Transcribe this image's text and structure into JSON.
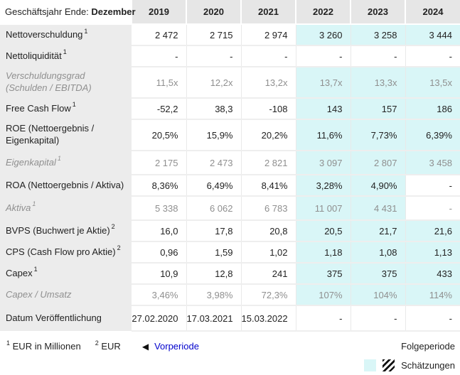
{
  "header": {
    "label_prefix": "Geschäftsjahr Ende:",
    "label_bold": "Dezember",
    "years": [
      "2019",
      "2020",
      "2021",
      "2022",
      "2023",
      "2024"
    ]
  },
  "rows": [
    {
      "label": "Nettoverschuldung",
      "sup": "1",
      "muted": false,
      "values": [
        "2 472",
        "2 715",
        "2 974",
        "3 260",
        "3 258",
        "3 444"
      ],
      "estimates": [
        false,
        false,
        false,
        true,
        true,
        true
      ]
    },
    {
      "label": "Nettoliquidität",
      "sup": "1",
      "muted": false,
      "values": [
        "-",
        "-",
        "-",
        "-",
        "-",
        "-"
      ],
      "estimates": [
        false,
        false,
        false,
        false,
        false,
        false
      ]
    },
    {
      "label": "Verschuldungsgrad (Schulden / EBITDA)",
      "sup": "",
      "muted": true,
      "values": [
        "11,5x",
        "12,2x",
        "13,2x",
        "13,7x",
        "13,3x",
        "13,5x"
      ],
      "estimates": [
        false,
        false,
        false,
        true,
        true,
        true
      ]
    },
    {
      "label": "Free Cash Flow",
      "sup": "1",
      "muted": false,
      "values": [
        "-52,2",
        "38,3",
        "-108",
        "143",
        "157",
        "186"
      ],
      "estimates": [
        false,
        false,
        false,
        true,
        true,
        true
      ]
    },
    {
      "label": "ROE (Nettoergebnis / Eigenkapital)",
      "sup": "",
      "muted": false,
      "values": [
        "20,5%",
        "15,9%",
        "20,2%",
        "11,6%",
        "7,73%",
        "6,39%"
      ],
      "estimates": [
        false,
        false,
        false,
        true,
        true,
        true
      ]
    },
    {
      "label": "Eigenkapital",
      "sup": "1",
      "muted": true,
      "values": [
        "2 175",
        "2 473",
        "2 821",
        "3 097",
        "2 807",
        "3 458"
      ],
      "estimates": [
        false,
        false,
        false,
        true,
        true,
        true
      ]
    },
    {
      "label": "ROA (Nettoergebnis / Aktiva)",
      "sup": "",
      "muted": false,
      "values": [
        "8,36%",
        "6,49%",
        "8,41%",
        "3,28%",
        "4,90%",
        "-"
      ],
      "estimates": [
        false,
        false,
        false,
        true,
        true,
        false
      ]
    },
    {
      "label": "Aktiva",
      "sup": "1",
      "muted": true,
      "values": [
        "5 338",
        "6 062",
        "6 783",
        "11 007",
        "4 431",
        "-"
      ],
      "estimates": [
        false,
        false,
        false,
        true,
        true,
        false
      ]
    },
    {
      "label": "BVPS (Buchwert je Aktie)",
      "sup": "2",
      "muted": false,
      "values": [
        "16,0",
        "17,8",
        "20,8",
        "20,5",
        "21,7",
        "21,6"
      ],
      "estimates": [
        false,
        false,
        false,
        true,
        true,
        true
      ]
    },
    {
      "label": "CPS (Cash Flow pro Aktie)",
      "sup": "2",
      "muted": false,
      "values": [
        "0,96",
        "1,59",
        "1,02",
        "1,18",
        "1,08",
        "1,13"
      ],
      "estimates": [
        false,
        false,
        false,
        true,
        true,
        true
      ]
    },
    {
      "label": "Capex",
      "sup": "1",
      "muted": false,
      "values": [
        "10,9",
        "12,8",
        "241",
        "375",
        "375",
        "433"
      ],
      "estimates": [
        false,
        false,
        false,
        true,
        true,
        true
      ]
    },
    {
      "label": "Capex / Umsatz",
      "sup": "",
      "muted": true,
      "values": [
        "3,46%",
        "3,98%",
        "72,3%",
        "107%",
        "104%",
        "114%"
      ],
      "estimates": [
        false,
        false,
        false,
        true,
        true,
        true
      ]
    },
    {
      "label": "Datum Veröffentlichung",
      "sup": "",
      "muted": false,
      "values": [
        "27.02.2020",
        "17.03.2021",
        "15.03.2022",
        "-",
        "-",
        "-"
      ],
      "estimates": [
        false,
        false,
        false,
        false,
        false,
        false
      ]
    }
  ],
  "footer": {
    "footnote1_sup": "1",
    "footnote1_text": "EUR in Millionen",
    "footnote2_sup": "2",
    "footnote2_text": "EUR",
    "prev_arrow": "◀",
    "prev_label": "Vorperiode",
    "next_label": "Folgeperiode",
    "legend_label": "Schätzungen"
  },
  "colors": {
    "estimate_bg": "#d9f6f7",
    "header_cell_bg": "#e6e6e6",
    "label_col_bg": "#ececec",
    "link_color": "#0000cc",
    "muted_text": "#8f8f8f"
  }
}
